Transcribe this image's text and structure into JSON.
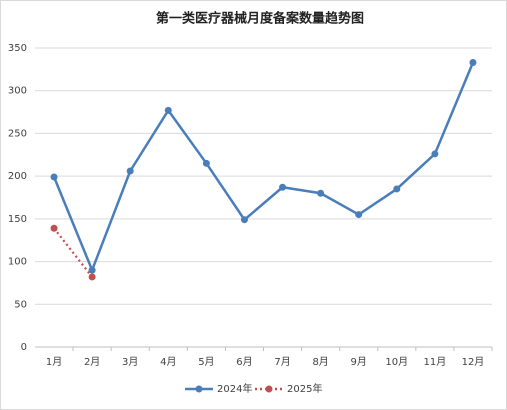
{
  "chart_data": {
    "type": "line",
    "title": "第一类医疗器械月度备案数量趋势图",
    "categories": [
      "1月",
      "2月",
      "3月",
      "4月",
      "5月",
      "6月",
      "7月",
      "8月",
      "9月",
      "10月",
      "11月",
      "12月"
    ],
    "series": [
      {
        "name": "2024年",
        "color": "#4a7ebb",
        "values": [
          199,
          90,
          206,
          277,
          215,
          149,
          187,
          180,
          155,
          185,
          226,
          333
        ]
      },
      {
        "name": "2025年",
        "color": "#c0504d",
        "values": [
          139,
          82,
          null,
          null,
          null,
          null,
          null,
          null,
          null,
          null,
          null,
          null
        ]
      }
    ],
    "ylim": [
      0,
      350
    ],
    "yticks": [
      0,
      50,
      100,
      150,
      200,
      250,
      300,
      350
    ],
    "grid": true
  }
}
